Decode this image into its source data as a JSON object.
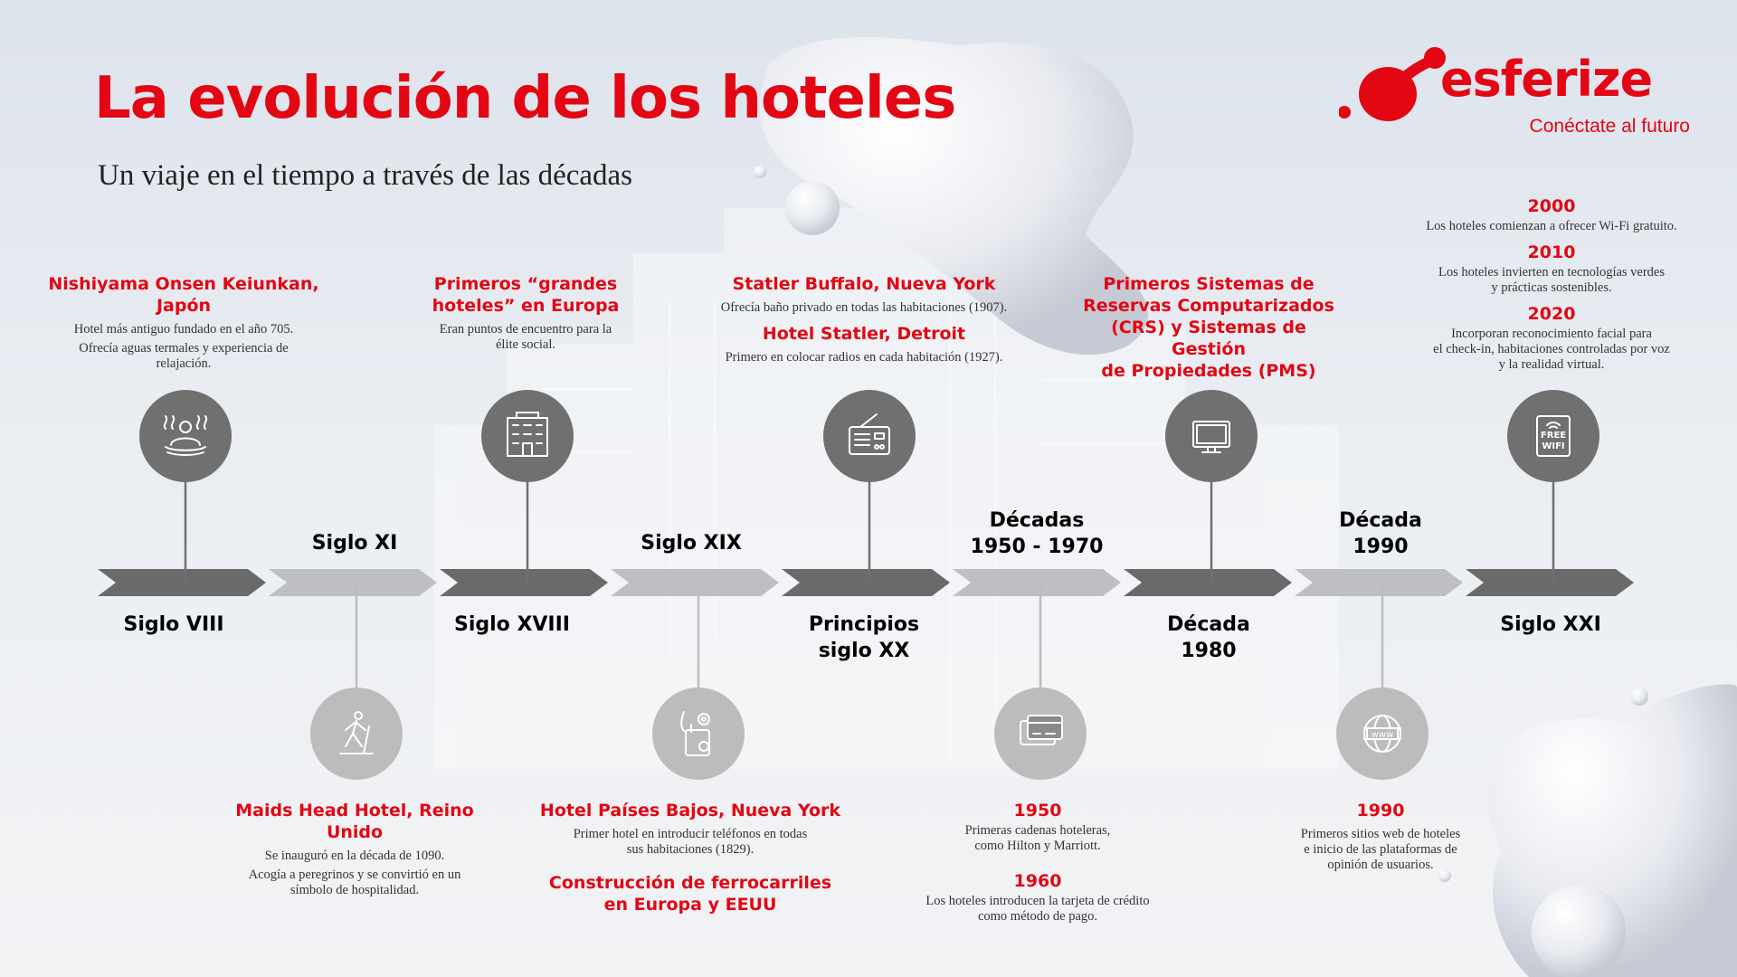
{
  "title": "La evolución de los hoteles",
  "subtitle": "Un viaje en el tiempo a través de las décadas",
  "logo": {
    "name": "esferize",
    "tagline": "Conéctate al futuro"
  },
  "colors": {
    "accent": "#e30613",
    "dark_segment": "#6a6a6a",
    "light_segment": "#bdbfc3",
    "dark_circle": "#707070",
    "light_circle": "#bcbcbc"
  },
  "periods": [
    {
      "label": "Siglo VIII",
      "tone": "dark"
    },
    {
      "label": "Siglo XI",
      "tone": "light"
    },
    {
      "label": "Siglo XVIII",
      "tone": "dark"
    },
    {
      "label": "Siglo XIX",
      "tone": "light"
    },
    {
      "label": "Principios\nsiglo XX",
      "tone": "dark"
    },
    {
      "label": "Décadas\n1950 - 1970",
      "tone": "light"
    },
    {
      "label": "Década\n1980",
      "tone": "dark"
    },
    {
      "label": "Década\n1990",
      "tone": "light"
    },
    {
      "label": "Siglo XXI",
      "tone": "dark"
    }
  ],
  "events": [
    {
      "icon": "spa-icon",
      "items": [
        {
          "title": "Nishiyama Onsen Keiunkan,\nJapón",
          "desc": "Hotel más antiguo fundado en el año 705."
        },
        {
          "title": "",
          "desc": "Ofrecía aguas termales y experiencia de\nrelajación."
        }
      ]
    },
    {
      "icon": "pilgrim-walking-icon",
      "items": [
        {
          "title": "Maids Head Hotel, Reino Unido",
          "desc": "Se inauguró en la década de 1090."
        },
        {
          "title": "",
          "desc": "Acogía a peregrinos y se convirtió en un\nsímbolo de hospitalidad."
        }
      ]
    },
    {
      "icon": "hotel-building-icon",
      "items": [
        {
          "title": "Primeros “grandes\nhoteles” en Europa",
          "desc": "Eran puntos de encuentro para la\nélite social."
        }
      ]
    },
    {
      "icon": "telephone-icon",
      "items": [
        {
          "title": "Hotel Países Bajos, Nueva York",
          "desc": "Primer hotel en introducir teléfonos en todas\nsus habitaciones (1829)."
        },
        {
          "title": "Construcción de ferrocarriles\nen Europa y EEUU",
          "desc": ""
        }
      ]
    },
    {
      "icon": "radio-icon",
      "items": [
        {
          "title": "Statler Buffalo, Nueva York",
          "desc": "Ofrecía baño privado en todas las habitaciones (1907)."
        },
        {
          "title": "Hotel Statler, Detroit",
          "desc": "Primero en colocar radios en cada habitación (1927)."
        }
      ]
    },
    {
      "icon": "credit-card-icon",
      "items": [
        {
          "title": "1950",
          "desc": "Primeras cadenas hoteleras,\ncomo Hilton y Marriott."
        },
        {
          "title": "1960",
          "desc": "Los hoteles introducen la tarjeta de crédito\ncomo método de pago."
        }
      ]
    },
    {
      "icon": "computer-monitor-icon",
      "items": [
        {
          "title": "Primeros Sistemas de\nReservas Computarizados\n(CRS) y Sistemas de Gestión\nde Propiedades (PMS)",
          "desc": ""
        }
      ]
    },
    {
      "icon": "globe-www-icon",
      "items": [
        {
          "title": "1990",
          "desc": "Primeros sitios web de hoteles\ne inicio de las plataformas de\nopinión de usuarios."
        }
      ]
    },
    {
      "icon": "free-wifi-icon",
      "icon_text": [
        "FREE",
        "WIFI"
      ],
      "items": [
        {
          "title": "2000",
          "desc": "Los hoteles comienzan a ofrecer Wi-Fi gratuito."
        },
        {
          "title": "2010",
          "desc": "Los hoteles invierten en tecnologías verdes\ny prácticas sostenibles."
        },
        {
          "title": "2020",
          "desc": "Incorporan reconocimiento facial para\nel check-in, habitaciones controladas por voz\ny la realidad virtual."
        }
      ]
    }
  ]
}
